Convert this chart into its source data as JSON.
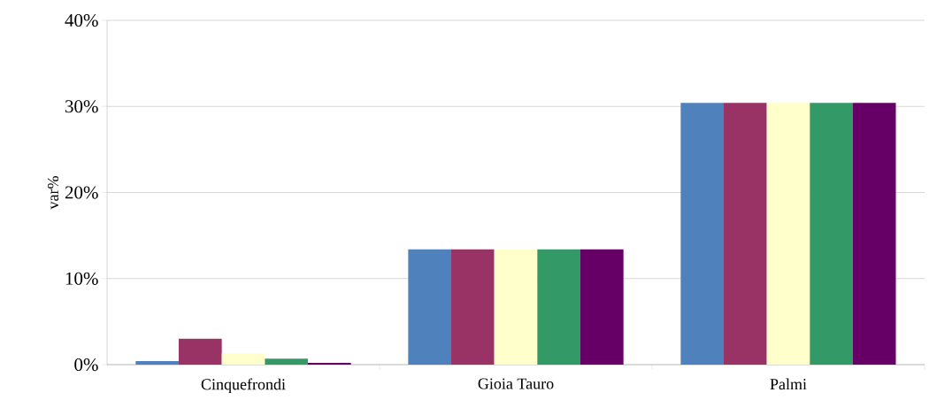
{
  "chart_data": {
    "type": "bar",
    "ylabel": "var%",
    "categories": [
      "Cinquefrondi",
      "Gioia Tauro",
      "Palmi"
    ],
    "series": [
      {
        "color": "#4f81bd",
        "values": [
          0.4,
          13.4,
          30.4
        ]
      },
      {
        "color": "#993366",
        "values": [
          3.0,
          13.4,
          30.4
        ]
      },
      {
        "color": "#ffffcc",
        "values": [
          1.3,
          13.4,
          30.4
        ]
      },
      {
        "color": "#339966",
        "values": [
          0.7,
          13.4,
          30.4
        ]
      },
      {
        "color": "#660066",
        "values": [
          0.2,
          13.4,
          30.4
        ]
      }
    ],
    "ylim": [
      0,
      40
    ],
    "yticks": [
      {
        "value": 0,
        "label": "0%"
      },
      {
        "value": 10,
        "label": "10%"
      },
      {
        "value": 20,
        "label": "20%"
      },
      {
        "value": 30,
        "label": "30%"
      },
      {
        "value": 40,
        "label": "40%"
      }
    ],
    "grid": "y"
  }
}
